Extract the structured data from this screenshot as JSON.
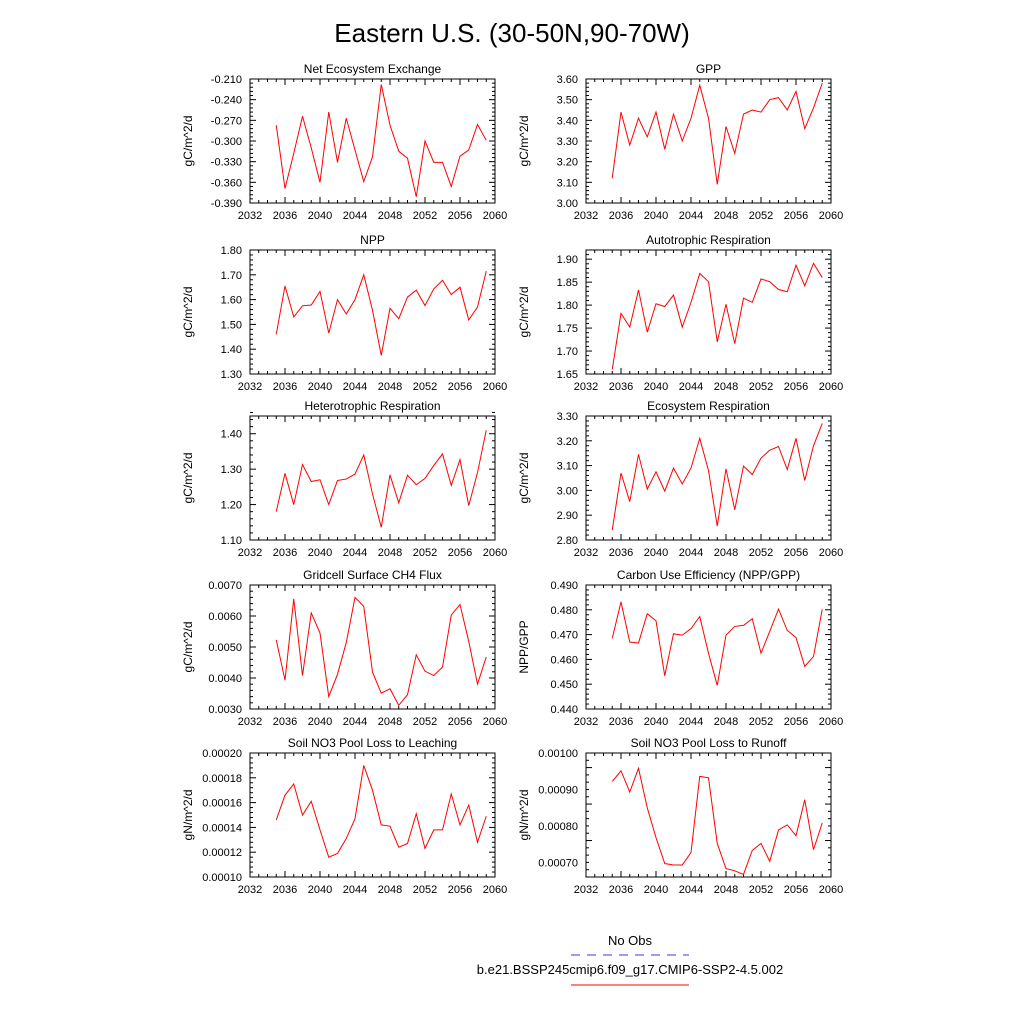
{
  "title": "Eastern U.S. (30-50N,90-70W)",
  "legend": {
    "entries": [
      {
        "label": "No Obs",
        "color": "#3a3ad6",
        "style": "dashed"
      },
      {
        "label": "b.e21.BSSP245cmip6.f09_g17.CMIP6-SSP2-4.5.002",
        "color": "#ff0000",
        "style": "solid"
      }
    ]
  },
  "chart_data": [
    {
      "type": "line",
      "title": "Net Ecosystem Exchange",
      "xlabel": "",
      "ylabel": "gC/m^2/d",
      "xlim": [
        2032,
        2060
      ],
      "ylim": [
        -0.39,
        -0.21
      ],
      "xticks": [
        "2032",
        "2036",
        "2040",
        "2044",
        "2048",
        "2052",
        "2056",
        "2060"
      ],
      "yticks": [
        "-0.390",
        "-0.360",
        "-0.330",
        "-0.300",
        "-0.270",
        "-0.240",
        "-0.210"
      ],
      "series": [
        {
          "color": "#ff0000",
          "x": [
            2035,
            2036,
            2037,
            2038,
            2039,
            2040,
            2041,
            2042,
            2043,
            2044,
            2045,
            2046,
            2047,
            2048,
            2049,
            2050,
            2051,
            2052,
            2053,
            2054,
            2055,
            2056,
            2057,
            2058,
            2059
          ],
          "y": [
            -0.277,
            -0.369,
            -0.318,
            -0.264,
            -0.31,
            -0.36,
            -0.258,
            -0.331,
            -0.267,
            -0.313,
            -0.359,
            -0.323,
            -0.218,
            -0.277,
            -0.315,
            -0.325,
            -0.381,
            -0.3,
            -0.331,
            -0.331,
            -0.366,
            -0.322,
            -0.313,
            -0.276,
            -0.299
          ]
        }
      ]
    },
    {
      "type": "line",
      "title": "GPP",
      "xlabel": "",
      "ylabel": "gC/m^2/d",
      "xlim": [
        2032,
        2060
      ],
      "ylim": [
        3.0,
        3.6
      ],
      "xticks": [
        "2032",
        "2036",
        "2040",
        "2044",
        "2048",
        "2052",
        "2056",
        "2060"
      ],
      "yticks": [
        "3.00",
        "3.10",
        "3.20",
        "3.30",
        "3.40",
        "3.50",
        "3.60"
      ],
      "series": [
        {
          "color": "#ff0000",
          "x": [
            2035,
            2036,
            2037,
            2038,
            2039,
            2040,
            2041,
            2042,
            2043,
            2044,
            2045,
            2046,
            2047,
            2048,
            2049,
            2050,
            2051,
            2052,
            2053,
            2054,
            2055,
            2056,
            2057,
            2058,
            2059
          ],
          "y": [
            3.12,
            3.44,
            3.28,
            3.41,
            3.32,
            3.44,
            3.26,
            3.43,
            3.3,
            3.41,
            3.57,
            3.41,
            3.09,
            3.37,
            3.24,
            3.43,
            3.45,
            3.44,
            3.5,
            3.51,
            3.45,
            3.54,
            3.36,
            3.46,
            3.58
          ]
        }
      ]
    },
    {
      "type": "line",
      "title": "NPP",
      "xlabel": "",
      "ylabel": "gC/m^2/d",
      "xlim": [
        2032,
        2060
      ],
      "ylim": [
        1.3,
        1.8
      ],
      "xticks": [
        "2032",
        "2036",
        "2040",
        "2044",
        "2048",
        "2052",
        "2056",
        "2060"
      ],
      "yticks": [
        "1.30",
        "1.40",
        "1.50",
        "1.60",
        "1.70",
        "1.80"
      ],
      "series": [
        {
          "color": "#ff0000",
          "x": [
            2035,
            2036,
            2037,
            2038,
            2039,
            2040,
            2041,
            2042,
            2043,
            2044,
            2045,
            2046,
            2047,
            2048,
            2049,
            2050,
            2051,
            2052,
            2053,
            2054,
            2055,
            2056,
            2057,
            2058,
            2059
          ],
          "y": [
            1.46,
            1.655,
            1.53,
            1.575,
            1.578,
            1.633,
            1.465,
            1.6,
            1.542,
            1.6,
            1.7,
            1.557,
            1.375,
            1.565,
            1.523,
            1.61,
            1.638,
            1.576,
            1.643,
            1.678,
            1.62,
            1.65,
            1.518,
            1.57,
            1.715
          ]
        }
      ]
    },
    {
      "type": "line",
      "title": "Autotrophic Respiration",
      "xlabel": "",
      "ylabel": "gC/m^2/d",
      "xlim": [
        2032,
        2060
      ],
      "ylim": [
        1.65,
        1.92
      ],
      "xticks": [
        "2032",
        "2036",
        "2040",
        "2044",
        "2048",
        "2052",
        "2056",
        "2060"
      ],
      "yticks": [
        "1.65",
        "1.70",
        "1.75",
        "1.80",
        "1.85",
        "1.90"
      ],
      "series": [
        {
          "color": "#ff0000",
          "x": [
            2035,
            2036,
            2037,
            2038,
            2039,
            2040,
            2041,
            2042,
            2043,
            2044,
            2045,
            2046,
            2047,
            2048,
            2049,
            2050,
            2051,
            2052,
            2053,
            2054,
            2055,
            2056,
            2057,
            2058,
            2059
          ],
          "y": [
            1.66,
            1.782,
            1.752,
            1.833,
            1.741,
            1.803,
            1.797,
            1.822,
            1.752,
            1.806,
            1.869,
            1.851,
            1.72,
            1.802,
            1.716,
            1.815,
            1.806,
            1.857,
            1.851,
            1.834,
            1.829,
            1.887,
            1.842,
            1.891,
            1.86
          ]
        }
      ]
    },
    {
      "type": "line",
      "title": "Heterotrophic Respiration",
      "xlabel": "",
      "ylabel": "gC/m^2/d",
      "xlim": [
        2032,
        2060
      ],
      "ylim": [
        1.1,
        1.45
      ],
      "xticks": [
        "2032",
        "2036",
        "2040",
        "2044",
        "2048",
        "2052",
        "2056",
        "2060"
      ],
      "yticks": [
        "1.10",
        "1.20",
        "1.30",
        "1.40"
      ],
      "series": [
        {
          "color": "#ff0000",
          "x": [
            2035,
            2036,
            2037,
            2038,
            2039,
            2040,
            2041,
            2042,
            2043,
            2044,
            2045,
            2046,
            2047,
            2048,
            2049,
            2050,
            2051,
            2052,
            2053,
            2054,
            2055,
            2056,
            2057,
            2058,
            2059
          ],
          "y": [
            1.18,
            1.288,
            1.2,
            1.313,
            1.265,
            1.27,
            1.2,
            1.268,
            1.272,
            1.286,
            1.34,
            1.23,
            1.136,
            1.284,
            1.205,
            1.283,
            1.256,
            1.274,
            1.31,
            1.343,
            1.254,
            1.327,
            1.197,
            1.29,
            1.41
          ]
        }
      ]
    },
    {
      "type": "line",
      "title": "Ecosystem Respiration",
      "xlabel": "",
      "ylabel": "gC/m^2/d",
      "xlim": [
        2032,
        2060
      ],
      "ylim": [
        2.8,
        3.3
      ],
      "xticks": [
        "2032",
        "2036",
        "2040",
        "2044",
        "2048",
        "2052",
        "2056",
        "2060"
      ],
      "yticks": [
        "2.80",
        "2.90",
        "3.00",
        "3.10",
        "3.20",
        "3.30"
      ],
      "series": [
        {
          "color": "#ff0000",
          "x": [
            2035,
            2036,
            2037,
            2038,
            2039,
            2040,
            2041,
            2042,
            2043,
            2044,
            2045,
            2046,
            2047,
            2048,
            2049,
            2050,
            2051,
            2052,
            2053,
            2054,
            2055,
            2056,
            2057,
            2058,
            2059
          ],
          "y": [
            2.84,
            3.07,
            2.955,
            3.145,
            3.005,
            3.075,
            2.997,
            3.09,
            3.026,
            3.09,
            3.21,
            3.08,
            2.856,
            3.087,
            2.922,
            3.098,
            3.064,
            3.13,
            3.162,
            3.177,
            3.084,
            3.21,
            3.04,
            3.18,
            3.27
          ]
        }
      ]
    },
    {
      "type": "line",
      "title": "Gridcell Surface CH4 Flux",
      "xlabel": "",
      "ylabel": "gC/m^2/d",
      "xlim": [
        2032,
        2060
      ],
      "ylim": [
        0.003,
        0.007
      ],
      "xticks": [
        "2032",
        "2036",
        "2040",
        "2044",
        "2048",
        "2052",
        "2056",
        "2060"
      ],
      "yticks": [
        "0.0030",
        "0.0040",
        "0.0050",
        "0.0060",
        "0.0070"
      ],
      "series": [
        {
          "color": "#ff0000",
          "x": [
            2035,
            2036,
            2037,
            2038,
            2039,
            2040,
            2041,
            2042,
            2043,
            2044,
            2045,
            2046,
            2047,
            2048,
            2049,
            2050,
            2051,
            2052,
            2053,
            2054,
            2055,
            2056,
            2057,
            2058,
            2059
          ],
          "y": [
            0.00523,
            0.00393,
            0.00655,
            0.00408,
            0.0061,
            0.00545,
            0.0034,
            0.00412,
            0.00514,
            0.0066,
            0.00631,
            0.00419,
            0.00351,
            0.00365,
            0.00312,
            0.00346,
            0.00475,
            0.00422,
            0.00408,
            0.00435,
            0.00603,
            0.00637,
            0.00518,
            0.0038,
            0.00468
          ]
        }
      ]
    },
    {
      "type": "line",
      "title": "Carbon Use Efficiency (NPP/GPP)",
      "xlabel": "",
      "ylabel": "NPP/GPP",
      "xlim": [
        2032,
        2060
      ],
      "ylim": [
        0.44,
        0.49
      ],
      "xticks": [
        "2032",
        "2036",
        "2040",
        "2044",
        "2048",
        "2052",
        "2056",
        "2060"
      ],
      "yticks": [
        "0.440",
        "0.450",
        "0.460",
        "0.470",
        "0.480",
        "0.490"
      ],
      "series": [
        {
          "color": "#ff0000",
          "x": [
            2035,
            2036,
            2037,
            2038,
            2039,
            2040,
            2041,
            2042,
            2043,
            2044,
            2045,
            2046,
            2047,
            2048,
            2049,
            2050,
            2051,
            2052,
            2053,
            2054,
            2055,
            2056,
            2057,
            2058,
            2059
          ],
          "y": [
            0.4685,
            0.4832,
            0.467,
            0.4666,
            0.4784,
            0.4756,
            0.4534,
            0.4703,
            0.4698,
            0.4724,
            0.4773,
            0.4625,
            0.4495,
            0.4698,
            0.4733,
            0.4737,
            0.4764,
            0.4625,
            0.4713,
            0.4803,
            0.4717,
            0.4688,
            0.4572,
            0.4612,
            0.4802
          ]
        }
      ]
    },
    {
      "type": "line",
      "title": "Soil NO3 Pool Loss to Leaching",
      "xlabel": "",
      "ylabel": "gN/m^2/d",
      "xlim": [
        2032,
        2060
      ],
      "ylim": [
        0.0001,
        0.0002
      ],
      "xticks": [
        "2032",
        "2036",
        "2040",
        "2044",
        "2048",
        "2052",
        "2056",
        "2060"
      ],
      "yticks": [
        "0.00010",
        "0.00012",
        "0.00014",
        "0.00016",
        "0.00018",
        "0.00020"
      ],
      "series": [
        {
          "color": "#ff0000",
          "x": [
            2035,
            2036,
            2037,
            2038,
            2039,
            2040,
            2041,
            2042,
            2043,
            2044,
            2045,
            2046,
            2047,
            2048,
            2049,
            2050,
            2051,
            2052,
            2053,
            2054,
            2055,
            2056,
            2057,
            2058,
            2059
          ],
          "y": [
            0.000146,
            0.000166,
            0.000175,
            0.00015,
            0.000161,
            0.000138,
            0.000116,
            0.000119,
            0.000131,
            0.000147,
            0.00019,
            0.00017,
            0.000142,
            0.000141,
            0.000124,
            0.000127,
            0.000151,
            0.000123,
            0.000138,
            0.000138,
            0.000167,
            0.000142,
            0.000158,
            0.000128,
            0.000149
          ]
        }
      ]
    },
    {
      "type": "line",
      "title": "Soil NO3 Pool Loss to Runoff",
      "xlabel": "",
      "ylabel": "gN/m^2/d",
      "xlim": [
        2032,
        2060
      ],
      "ylim": [
        0.00066,
        0.001
      ],
      "xticks": [
        "2032",
        "2036",
        "2040",
        "2044",
        "2048",
        "2052",
        "2056",
        "2060"
      ],
      "yticks": [
        "0.00070",
        "0.00080",
        "0.00090",
        "0.00100"
      ],
      "series": [
        {
          "color": "#ff0000",
          "x": [
            2035,
            2036,
            2037,
            2038,
            2039,
            2040,
            2041,
            2042,
            2043,
            2044,
            2045,
            2046,
            2047,
            2048,
            2049,
            2050,
            2051,
            2052,
            2053,
            2054,
            2055,
            2056,
            2057,
            2058,
            2059
          ],
          "y": [
            0.000922,
            0.000951,
            0.000893,
            0.000958,
            0.00085,
            0.000768,
            0.000697,
            0.000693,
            0.000693,
            0.000727,
            0.000936,
            0.000932,
            0.000752,
            0.000683,
            0.000677,
            0.000667,
            0.000733,
            0.000752,
            0.000703,
            0.000789,
            0.000803,
            0.000773,
            0.000872,
            0.000735,
            0.000808
          ]
        }
      ]
    }
  ]
}
